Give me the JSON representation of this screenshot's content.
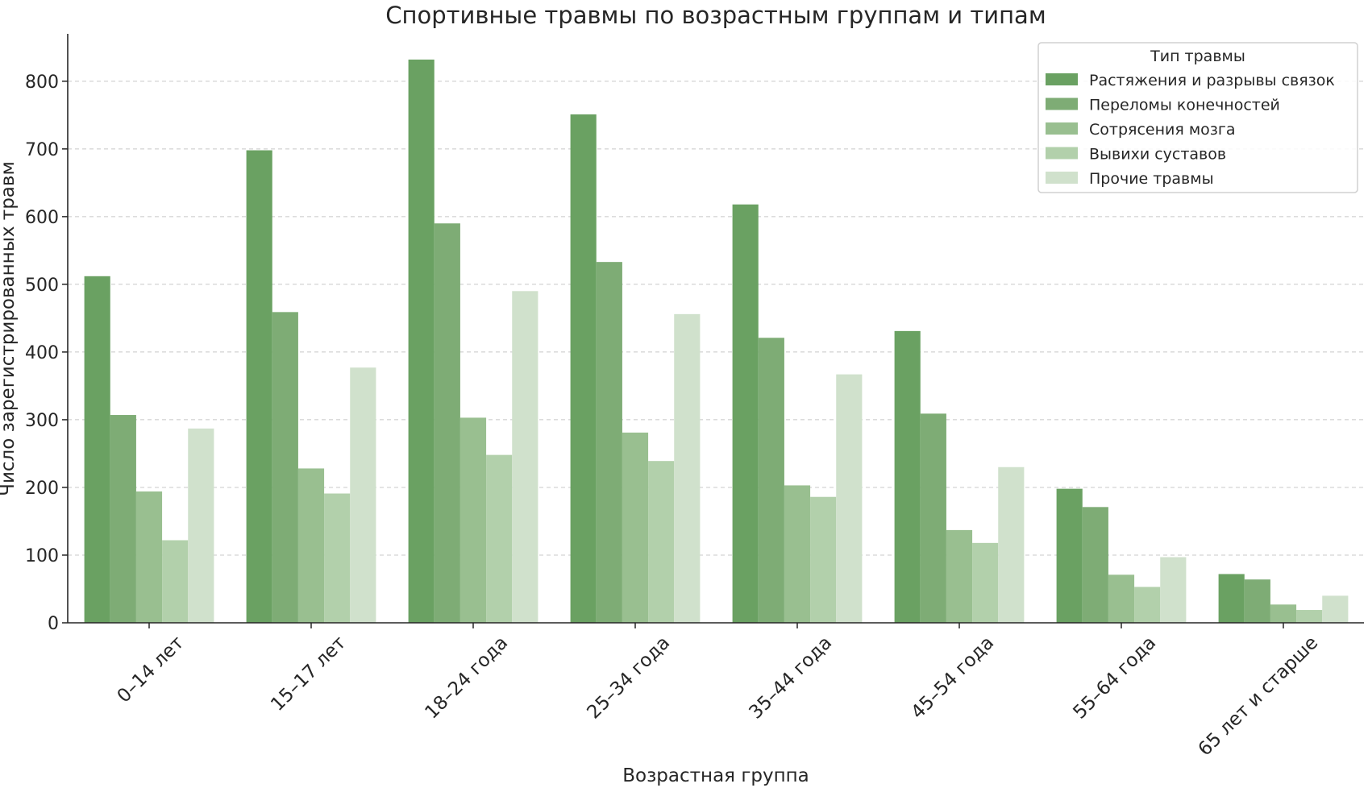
{
  "chart_data": {
    "type": "bar",
    "title": "Спортивные травмы по возрастным группам и типам",
    "xlabel": "Возрастная группа",
    "ylabel": "Число зарегистрированных травм",
    "ylim": [
      0,
      870
    ],
    "yticks": [
      0,
      100,
      200,
      300,
      400,
      500,
      600,
      700,
      800
    ],
    "grid": true,
    "legend_title": "Тип травмы",
    "legend_position": "top-right",
    "categories": [
      "0–14 лет",
      "15–17 лет",
      "18–24 года",
      "25–34 года",
      "35–44 года",
      "45–54 года",
      "55–64 года",
      "65 лет и старше"
    ],
    "series": [
      {
        "name": "Растяжения и разрывы связок",
        "color": "#6aa162",
        "values": [
          512,
          698,
          832,
          751,
          618,
          431,
          198,
          72
        ]
      },
      {
        "name": "Переломы конечностей",
        "color": "#7eac75",
        "values": [
          307,
          459,
          590,
          533,
          421,
          309,
          171,
          64
        ]
      },
      {
        "name": "Сотрясения мозга",
        "color": "#99bf90",
        "values": [
          194,
          228,
          303,
          281,
          203,
          137,
          71,
          27
        ]
      },
      {
        "name": "Вывихи суставов",
        "color": "#b2d0ab",
        "values": [
          122,
          191,
          248,
          239,
          186,
          118,
          53,
          19
        ]
      },
      {
        "name": "Прочие травмы",
        "color": "#d0e1cc",
        "values": [
          287,
          377,
          490,
          456,
          367,
          230,
          97,
          40
        ]
      }
    ]
  }
}
